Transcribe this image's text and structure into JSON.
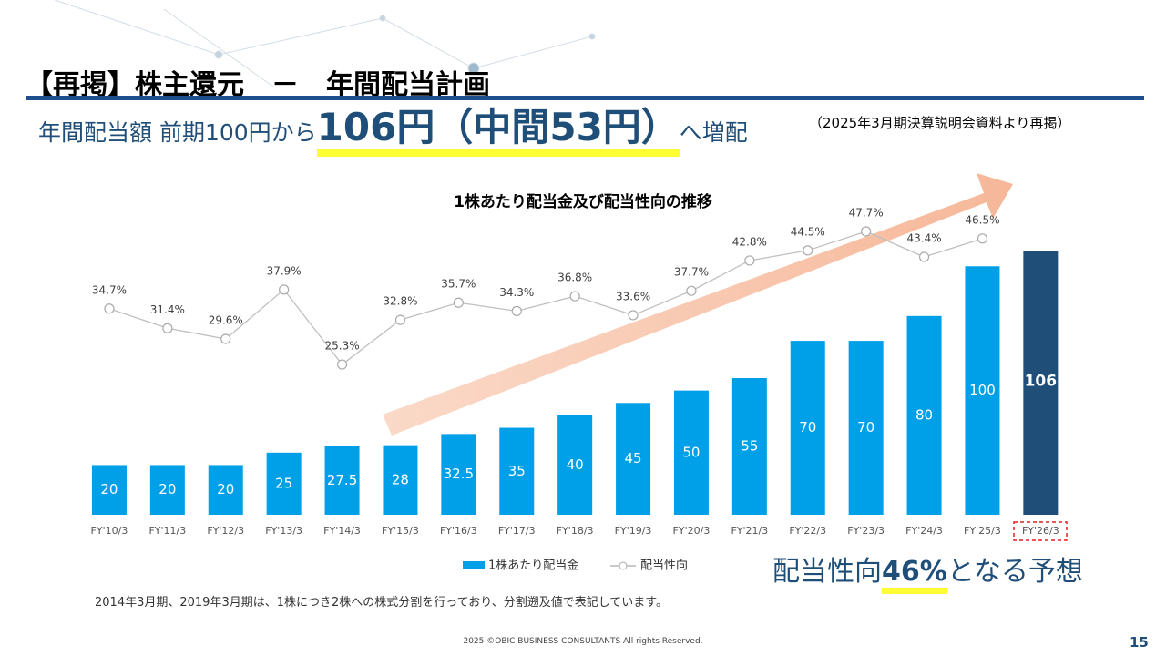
{
  "title": "【再掲】株主還元　－　年間配当計画",
  "headline": {
    "lead": "年間配当額 前期100円から",
    "emphasis": "106円（中間53円）",
    "tail": "へ増配"
  },
  "source_note": "（2025年3月期決算説明会資料より再掲）",
  "callout": {
    "lead": "配当性向",
    "emphasis": "46%",
    "tail": "となる予想"
  },
  "footnote": "2014年3月期、2019年3月期は、1株につき2株への株式分割を行っており、分割遡及値で表記しています。",
  "copyright": "2025 ©OBIC BUSINESS CONSULTANTS All rights Reserved.",
  "page_number": "15",
  "chart_data": {
    "type": "bar_line",
    "title": "1株あたり配当金及び配当性向の推移",
    "categories": [
      "FY'10/3",
      "FY'11/3",
      "FY'12/3",
      "FY'13/3",
      "FY'14/3",
      "FY'15/3",
      "FY'16/3",
      "FY'17/3",
      "FY'18/3",
      "FY'19/3",
      "FY'20/3",
      "FY'21/3",
      "FY'22/3",
      "FY'23/3",
      "FY'24/3",
      "FY'25/3",
      "FY'26/3"
    ],
    "series": [
      {
        "name": "1株あたり配当金",
        "type": "bar",
        "color": "#00a0e9",
        "colors": [
          "#00a0e9",
          "#00a0e9",
          "#00a0e9",
          "#00a0e9",
          "#00a0e9",
          "#00a0e9",
          "#00a0e9",
          "#00a0e9",
          "#00a0e9",
          "#00a0e9",
          "#00a0e9",
          "#00a0e9",
          "#00a0e9",
          "#00a0e9",
          "#00a0e9",
          "#00a0e9",
          "#1f4e79"
        ],
        "values": [
          20,
          20,
          20,
          25,
          27.5,
          28,
          32.5,
          35,
          40,
          45,
          50,
          55,
          70,
          70,
          80,
          100,
          106
        ]
      },
      {
        "name": "配当性向",
        "type": "line",
        "axis": "y2",
        "color": "#bfbfbf",
        "values": [
          34.7,
          31.4,
          29.6,
          37.9,
          25.3,
          32.8,
          35.7,
          34.3,
          36.8,
          33.6,
          37.7,
          42.8,
          44.5,
          47.7,
          43.4,
          46.5,
          null
        ],
        "value_labels": [
          "34.7%",
          "31.4%",
          "29.6%",
          "37.9%",
          "25.3%",
          "32.8%",
          "35.7%",
          "34.3%",
          "36.8%",
          "33.6%",
          "37.7%",
          "42.8%",
          "44.5%",
          "47.7%",
          "43.4%",
          "46.5%",
          null
        ]
      }
    ],
    "ylim": [
      0,
      110
    ],
    "y2lim": [
      0,
      50
    ],
    "legend": "bottom"
  }
}
